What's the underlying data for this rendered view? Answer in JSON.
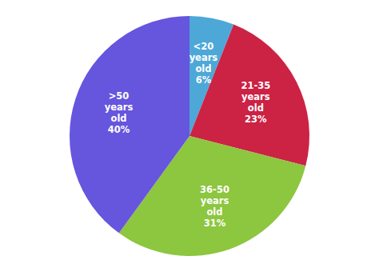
{
  "chart_data": {
    "type": "pie",
    "categories": [
      "<20\nyears\nold\n6%",
      "21-35\nyears\nold\n23%",
      "36-50\nyears\nold\n31%",
      ">50\nyears\nold\n40%"
    ],
    "values": [
      6,
      23,
      31,
      40
    ],
    "colors": [
      "#4da8d8",
      "#cc2244",
      "#8dc63f",
      "#6655dd"
    ]
  }
}
